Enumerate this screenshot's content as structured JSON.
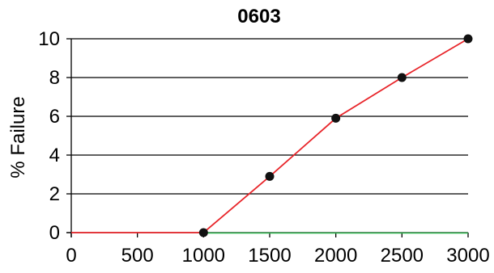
{
  "chart_data": {
    "type": "line",
    "title": "0603",
    "xlabel": "",
    "ylabel": "% Failure",
    "xlim": [
      0,
      3000
    ],
    "ylim": [
      0,
      10
    ],
    "xticks": [
      0,
      500,
      1000,
      1500,
      2000,
      2500,
      3000
    ],
    "yticks": [
      0,
      2,
      4,
      6,
      8,
      10
    ],
    "xtick_labels": [
      "0",
      "500",
      "1000",
      "1500",
      "2000",
      "2500",
      "3000"
    ],
    "ytick_labels": [
      "0",
      "2",
      "4",
      "6",
      "8",
      "10"
    ],
    "grid": "horizontal",
    "series": [
      {
        "x": [
          0,
          1000,
          1500,
          2000,
          2500,
          3000
        ],
        "y": [
          0,
          0,
          2.9,
          5.9,
          8.0,
          10.0
        ],
        "markers_x": [
          1000,
          1500,
          2000,
          2500,
          3000
        ],
        "markers_y": [
          0,
          2.9,
          5.9,
          8.0,
          10.0
        ],
        "color": "#e8252a",
        "marker_color": "#111111"
      }
    ],
    "baseline": {
      "x": [
        1000,
        3000
      ],
      "y": 0,
      "color": "#2bb34a"
    }
  }
}
